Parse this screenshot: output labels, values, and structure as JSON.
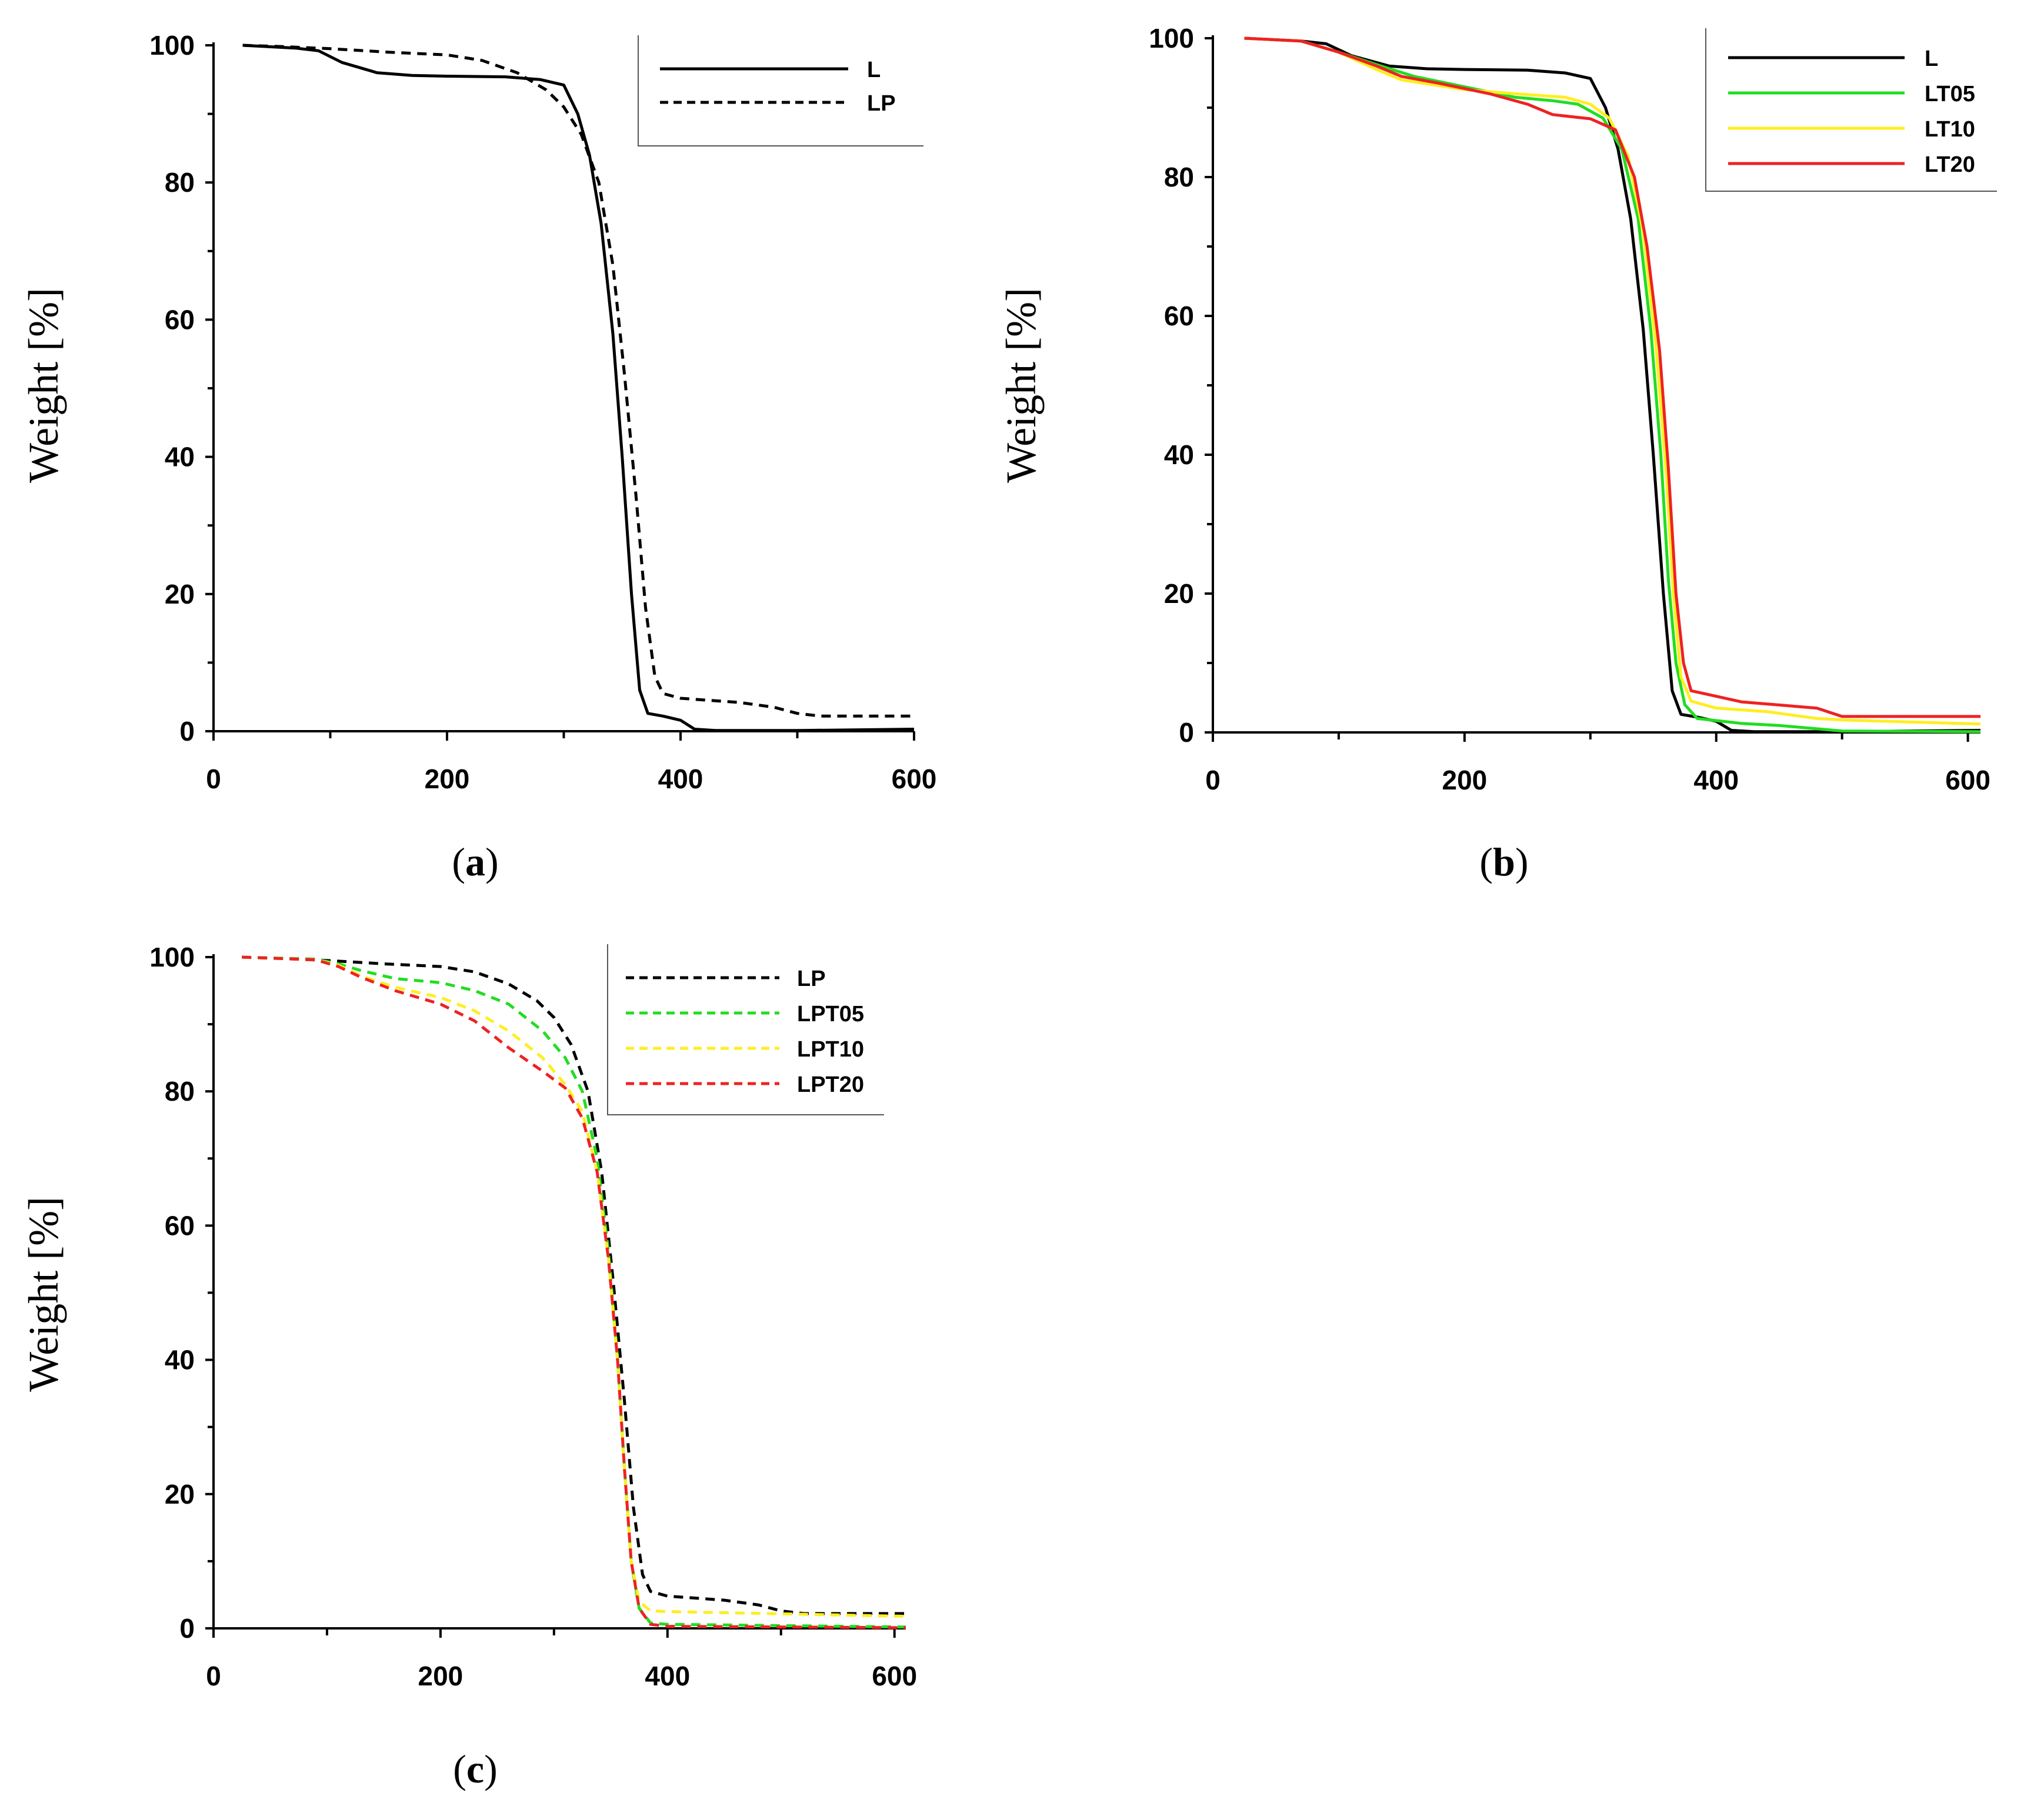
{
  "chart_data": [
    {
      "panel": "a",
      "label_letter": "a",
      "type": "line",
      "title": "",
      "xlabel": "",
      "ylabel": "Weight [%]",
      "xlim": [
        0,
        600
      ],
      "ylim": [
        0,
        100
      ],
      "xticks": [
        0,
        200,
        400,
        600
      ],
      "yticks": [
        0,
        20,
        40,
        60,
        80,
        100
      ],
      "legend_position": "top-right",
      "series": [
        {
          "name": "L",
          "color": "#000000",
          "dashed": false,
          "points": [
            [
              25,
              100
            ],
            [
              70,
              99.6
            ],
            [
              90,
              99.2
            ],
            [
              110,
              97.5
            ],
            [
              140,
              96
            ],
            [
              170,
              95.6
            ],
            [
              200,
              95.5
            ],
            [
              250,
              95.4
            ],
            [
              280,
              95
            ],
            [
              300,
              94.2
            ],
            [
              312,
              90
            ],
            [
              322,
              84
            ],
            [
              332,
              74
            ],
            [
              342,
              58
            ],
            [
              350,
              40
            ],
            [
              358,
              20
            ],
            [
              365,
              6
            ],
            [
              372,
              2.6
            ],
            [
              385,
              2.2
            ],
            [
              400,
              1.6
            ],
            [
              412,
              0.3
            ],
            [
              430,
              0.1
            ],
            [
              500,
              0.1
            ],
            [
              600,
              0.3
            ]
          ]
        },
        {
          "name": "LP",
          "color": "#000000",
          "dashed": true,
          "points": [
            [
              25,
              100
            ],
            [
              60,
              99.8
            ],
            [
              100,
              99.5
            ],
            [
              150,
              99
            ],
            [
              200,
              98.6
            ],
            [
              230,
              97.8
            ],
            [
              260,
              96
            ],
            [
              285,
              93.5
            ],
            [
              300,
              91
            ],
            [
              315,
              87
            ],
            [
              330,
              80
            ],
            [
              342,
              68
            ],
            [
              352,
              52
            ],
            [
              362,
              34
            ],
            [
              370,
              18
            ],
            [
              378,
              8
            ],
            [
              385,
              5.5
            ],
            [
              400,
              4.8
            ],
            [
              450,
              4.2
            ],
            [
              480,
              3.5
            ],
            [
              500,
              2.6
            ],
            [
              520,
              2.2
            ],
            [
              600,
              2.2
            ]
          ]
        }
      ]
    },
    {
      "panel": "b",
      "label_letter": "b",
      "type": "line",
      "title": "",
      "xlabel": "",
      "ylabel": "Weight [%]",
      "xlim": [
        0,
        600
      ],
      "ylim": [
        0,
        100
      ],
      "xticks": [
        0,
        200,
        400,
        600
      ],
      "yticks": [
        0,
        20,
        40,
        60,
        80,
        100
      ],
      "legend_position": "top-right",
      "series": [
        {
          "name": "L",
          "color": "#000000",
          "dashed": false,
          "points": [
            [
              25,
              100
            ],
            [
              70,
              99.6
            ],
            [
              90,
              99.2
            ],
            [
              110,
              97.5
            ],
            [
              140,
              96
            ],
            [
              170,
              95.6
            ],
            [
              200,
              95.5
            ],
            [
              250,
              95.4
            ],
            [
              280,
              95
            ],
            [
              300,
              94.2
            ],
            [
              312,
              90
            ],
            [
              322,
              84
            ],
            [
              332,
              74
            ],
            [
              342,
              58
            ],
            [
              350,
              40
            ],
            [
              358,
              20
            ],
            [
              365,
              6
            ],
            [
              372,
              2.6
            ],
            [
              385,
              2.2
            ],
            [
              400,
              1.6
            ],
            [
              412,
              0.3
            ],
            [
              430,
              0.1
            ],
            [
              500,
              0.1
            ],
            [
              610,
              0.3
            ]
          ]
        },
        {
          "name": "LT05",
          "color": "#22dd22",
          "dashed": false,
          "points": [
            [
              25,
              100
            ],
            [
              70,
              99.6
            ],
            [
              100,
              98
            ],
            [
              130,
              96.2
            ],
            [
              160,
              94.5
            ],
            [
              200,
              93
            ],
            [
              240,
              91.5
            ],
            [
              270,
              91
            ],
            [
              290,
              90.5
            ],
            [
              310,
              88.5
            ],
            [
              325,
              84
            ],
            [
              338,
              74
            ],
            [
              348,
              58
            ],
            [
              356,
              40
            ],
            [
              362,
              22
            ],
            [
              368,
              10
            ],
            [
              375,
              4
            ],
            [
              385,
              2
            ],
            [
              420,
              1.3
            ],
            [
              450,
              1.0
            ],
            [
              500,
              0.2
            ],
            [
              610,
              0.1
            ]
          ]
        },
        {
          "name": "LT10",
          "color": "#ffee22",
          "dashed": false,
          "points": [
            [
              25,
              100
            ],
            [
              70,
              99.6
            ],
            [
              100,
              98
            ],
            [
              130,
              95.5
            ],
            [
              150,
              94
            ],
            [
              200,
              92.6
            ],
            [
              240,
              92
            ],
            [
              280,
              91.5
            ],
            [
              300,
              90.5
            ],
            [
              315,
              88.5
            ],
            [
              330,
              83
            ],
            [
              342,
              72
            ],
            [
              352,
              56
            ],
            [
              360,
              38
            ],
            [
              366,
              20
            ],
            [
              372,
              8
            ],
            [
              380,
              4.5
            ],
            [
              400,
              3.5
            ],
            [
              440,
              3.0
            ],
            [
              480,
              2.0
            ],
            [
              500,
              1.8
            ],
            [
              610,
              1.2
            ]
          ]
        },
        {
          "name": "LT20",
          "color": "#ee2222",
          "dashed": false,
          "points": [
            [
              25,
              100
            ],
            [
              70,
              99.6
            ],
            [
              100,
              98
            ],
            [
              130,
              96
            ],
            [
              150,
              94.5
            ],
            [
              180,
              93.5
            ],
            [
              220,
              92
            ],
            [
              250,
              90.5
            ],
            [
              270,
              89
            ],
            [
              300,
              88.4
            ],
            [
              320,
              86.8
            ],
            [
              335,
              80
            ],
            [
              345,
              70
            ],
            [
              355,
              55
            ],
            [
              362,
              38
            ],
            [
              368,
              20
            ],
            [
              374,
              10
            ],
            [
              380,
              6
            ],
            [
              400,
              5.2
            ],
            [
              420,
              4.4
            ],
            [
              480,
              3.5
            ],
            [
              500,
              2.3
            ],
            [
              610,
              2.3
            ]
          ]
        }
      ]
    },
    {
      "panel": "c",
      "label_letter": "c",
      "type": "line",
      "title": "",
      "xlabel": "",
      "ylabel": "Weight [%]",
      "xlim": [
        0,
        600
      ],
      "ylim": [
        0,
        100
      ],
      "xticks": [
        0,
        200,
        400,
        600
      ],
      "yticks": [
        0,
        20,
        40,
        60,
        80,
        100
      ],
      "legend_position": "top-right",
      "series": [
        {
          "name": "LP",
          "color": "#000000",
          "dashed": true,
          "points": [
            [
              25,
              100
            ],
            [
              60,
              99.8
            ],
            [
              100,
              99.5
            ],
            [
              150,
              99
            ],
            [
              200,
              98.6
            ],
            [
              230,
              97.8
            ],
            [
              260,
              96
            ],
            [
              285,
              93.5
            ],
            [
              300,
              91
            ],
            [
              315,
              87
            ],
            [
              330,
              80
            ],
            [
              342,
              68
            ],
            [
              352,
              52
            ],
            [
              362,
              34
            ],
            [
              370,
              18
            ],
            [
              378,
              8
            ],
            [
              385,
              5.5
            ],
            [
              400,
              4.8
            ],
            [
              450,
              4.2
            ],
            [
              480,
              3.5
            ],
            [
              500,
              2.6
            ],
            [
              520,
              2.2
            ],
            [
              610,
              2.2
            ]
          ]
        },
        {
          "name": "LPT05",
          "color": "#22dd22",
          "dashed": true,
          "points": [
            [
              25,
              100
            ],
            [
              90,
              99.7
            ],
            [
              110,
              99
            ],
            [
              130,
              98
            ],
            [
              160,
              96.8
            ],
            [
              200,
              96.2
            ],
            [
              230,
              95
            ],
            [
              260,
              93
            ],
            [
              290,
              89
            ],
            [
              310,
              85
            ],
            [
              325,
              80
            ],
            [
              338,
              70
            ],
            [
              348,
              56
            ],
            [
              356,
              40
            ],
            [
              362,
              24
            ],
            [
              368,
              10
            ],
            [
              375,
              3
            ],
            [
              385,
              0.8
            ],
            [
              400,
              0.6
            ],
            [
              610,
              0.2
            ]
          ]
        },
        {
          "name": "LPT10",
          "color": "#ffee22",
          "dashed": true,
          "points": [
            [
              25,
              100
            ],
            [
              90,
              99.6
            ],
            [
              110,
              98.8
            ],
            [
              130,
              97.2
            ],
            [
              160,
              95.5
            ],
            [
              200,
              94
            ],
            [
              230,
              92
            ],
            [
              260,
              89
            ],
            [
              290,
              85
            ],
            [
              310,
              81
            ],
            [
              325,
              77
            ],
            [
              338,
              68
            ],
            [
              348,
              55
            ],
            [
              356,
              40
            ],
            [
              362,
              24
            ],
            [
              368,
              10
            ],
            [
              375,
              4
            ],
            [
              385,
              2.6
            ],
            [
              400,
              2.5
            ],
            [
              610,
              1.8
            ]
          ]
        },
        {
          "name": "LPT20",
          "color": "#ee2222",
          "dashed": true,
          "points": [
            [
              25,
              100
            ],
            [
              90,
              99.6
            ],
            [
              110,
              98.6
            ],
            [
              130,
              97
            ],
            [
              160,
              95
            ],
            [
              200,
              93
            ],
            [
              230,
              90.5
            ],
            [
              260,
              86.5
            ],
            [
              290,
              83
            ],
            [
              310,
              80.5
            ],
            [
              325,
              76
            ],
            [
              338,
              68
            ],
            [
              348,
              55
            ],
            [
              356,
              40
            ],
            [
              362,
              24
            ],
            [
              368,
              10
            ],
            [
              375,
              3
            ],
            [
              385,
              0.6
            ],
            [
              400,
              0.3
            ],
            [
              610,
              0.1
            ]
          ]
        }
      ]
    }
  ]
}
